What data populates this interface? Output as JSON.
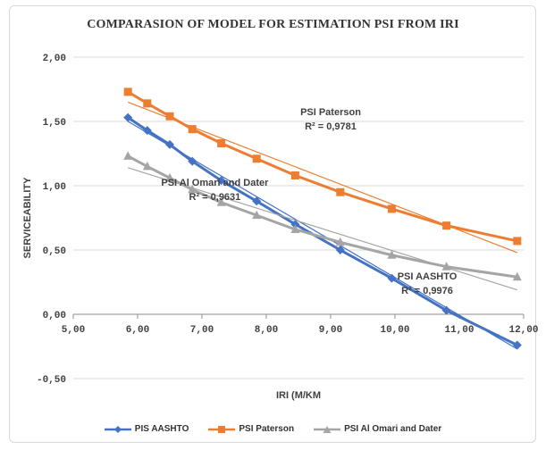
{
  "chart_data": {
    "type": "line",
    "title": "COMPARASION OF MODEL FOR ESTIMATION PSI FROM IRI",
    "xlabel": "IRI (M/KM",
    "ylabel": "SERVICEABILITY",
    "xlim": [
      5,
      12
    ],
    "ylim": [
      -0.5,
      2
    ],
    "x_ticks": [
      "5,00",
      "6,00",
      "7,00",
      "8,00",
      "9,00",
      "10,00",
      "11,00",
      "12,00"
    ],
    "y_ticks": [
      "-0,50",
      "0,00",
      "0,50",
      "1,00",
      "1,50",
      "2,00"
    ],
    "grid": "horizontal",
    "legend_position": "bottom",
    "series": [
      {
        "name": "PIS AASHTO",
        "color": "#4472c4",
        "marker": "diamond",
        "x": [
          5.85,
          6.15,
          6.5,
          6.85,
          7.3,
          7.85,
          8.45,
          9.15,
          9.95,
          10.8,
          11.9
        ],
        "y": [
          1.53,
          1.43,
          1.32,
          1.19,
          1.04,
          0.88,
          0.7,
          0.5,
          0.28,
          0.03,
          -0.24
        ],
        "trend": {
          "x": [
            5.85,
            11.9
          ],
          "y": [
            1.5,
            -0.27
          ]
        }
      },
      {
        "name": "PSI Paterson",
        "color": "#ed7d31",
        "marker": "square",
        "x": [
          5.85,
          6.15,
          6.5,
          6.85,
          7.3,
          7.85,
          8.45,
          9.15,
          9.95,
          10.8,
          11.9
        ],
        "y": [
          1.73,
          1.64,
          1.54,
          1.44,
          1.33,
          1.21,
          1.08,
          0.95,
          0.82,
          0.69,
          0.57
        ],
        "trend": {
          "x": [
            5.85,
            11.9
          ],
          "y": [
            1.65,
            0.48
          ]
        }
      },
      {
        "name": "PSI Al Omari and Dater",
        "color": "#a5a5a5",
        "marker": "triangle",
        "x": [
          5.85,
          6.15,
          6.5,
          6.85,
          7.3,
          7.85,
          8.45,
          9.15,
          9.95,
          10.8,
          11.9
        ],
        "y": [
          1.23,
          1.15,
          1.06,
          0.97,
          0.87,
          0.77,
          0.66,
          0.56,
          0.46,
          0.37,
          0.29
        ],
        "trend": {
          "x": [
            5.85,
            11.9
          ],
          "y": [
            1.14,
            0.19
          ]
        }
      }
    ],
    "annotations": [
      {
        "line1": "PSI Paterson",
        "line2": "R² = 0,9781"
      },
      {
        "line1": "PSI Al Omari and Dater",
        "line2": "R² = 0,9631"
      },
      {
        "line1": "PSI AASHTO",
        "line2": "R² = 0,9976"
      }
    ]
  }
}
